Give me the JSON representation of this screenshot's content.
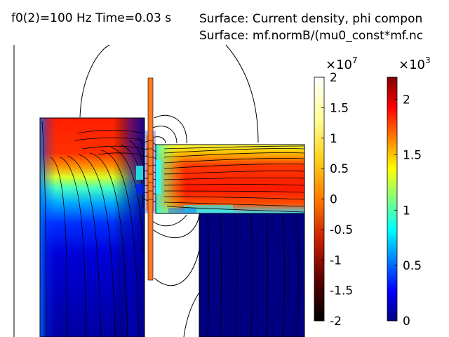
{
  "header": {
    "time_title": "f0(2)=100 Hz Time=0.03 s",
    "surface_title_1": "Surface: Current density, phi compon",
    "surface_title_2": "Surface: mf.normB/(mu0_const*mf.nc"
  },
  "chart_data": [
    {
      "type": "heatmap",
      "quantity": "Current density, phi component",
      "colormap": "thermal-wave",
      "colormap_stops": [
        "#000000",
        "#5a0000",
        "#c81e00",
        "#ff7a00",
        "#ffd21e",
        "#ffff9a",
        "#ffffff"
      ],
      "multiplier": "×10",
      "exponent": "7",
      "range": [
        -2,
        2
      ],
      "ticks": [
        {
          "value": 2,
          "label": "2"
        },
        {
          "value": 1.5,
          "label": "1.5"
        },
        {
          "value": 1,
          "label": "1"
        },
        {
          "value": 0.5,
          "label": "0.5"
        },
        {
          "value": 0,
          "label": "0"
        },
        {
          "value": -0.5,
          "label": "-0.5"
        },
        {
          "value": -1,
          "label": "-1"
        },
        {
          "value": -1.5,
          "label": "-1.5"
        },
        {
          "value": -2,
          "label": "-2"
        }
      ]
    },
    {
      "type": "heatmap",
      "quantity": "mf.normB/(mu0_const*mf.nc",
      "colormap": "jet",
      "colormap_stops": [
        "#00007f",
        "#0000ff",
        "#0080ff",
        "#00ffff",
        "#80ff80",
        "#ffff00",
        "#ff8000",
        "#ff0000",
        "#7f0000"
      ],
      "multiplier": "×10",
      "exponent": "3",
      "range": [
        0,
        2.2
      ],
      "ticks": [
        {
          "value": 2,
          "label": "2"
        },
        {
          "value": 1.5,
          "label": "1.5"
        },
        {
          "value": 1,
          "label": "1"
        },
        {
          "value": 0.5,
          "label": "0.5"
        },
        {
          "value": 0,
          "label": "0"
        }
      ]
    }
  ]
}
